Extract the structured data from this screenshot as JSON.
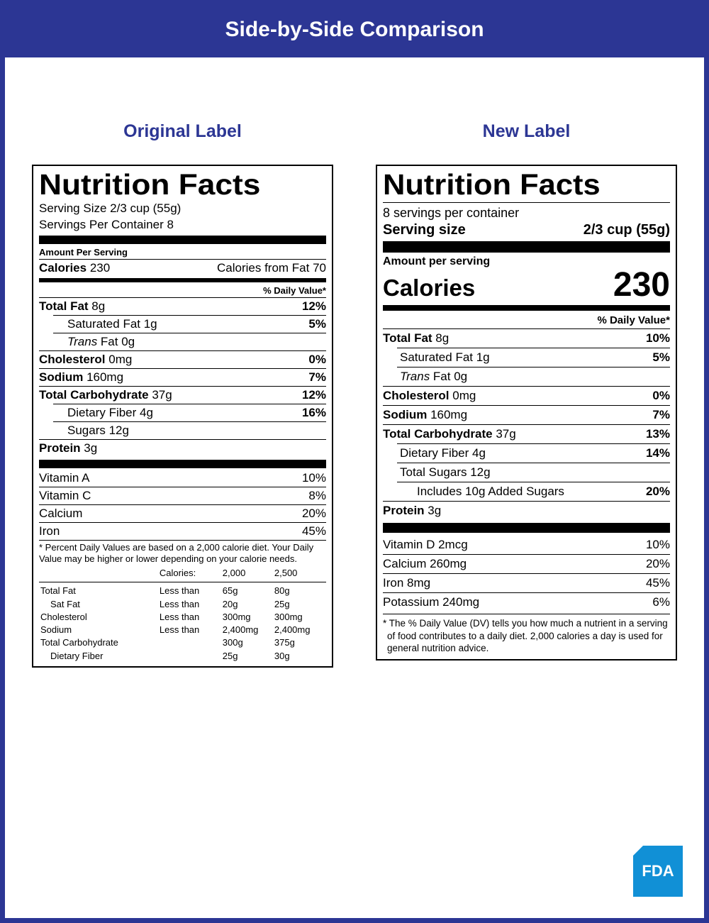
{
  "header": "Side-by-Side Comparison",
  "colors": {
    "brand_blue": "#2c3694",
    "fda_blue": "#1190d6",
    "black": "#000000",
    "white": "#ffffff"
  },
  "fonts": {
    "heading": "Impact / Arial Black",
    "body": "Helvetica / Arial",
    "title_size_pt": 41,
    "body_size_pt": 17,
    "small_size_pt": 13
  },
  "original": {
    "col_title": "Original Label",
    "title": "Nutrition Facts",
    "serving_size": "Serving Size 2/3 cup (55g)",
    "servings_per": "Servings Per Container 8",
    "amount_per_serving": "Amount Per Serving",
    "calories_label": "Calories",
    "calories_value": "230",
    "calories_from_fat": "Calories from Fat 70",
    "dv_header": "% Daily Value*",
    "nutrients": [
      {
        "name": "Total Fat",
        "amount": "8g",
        "dv": "12%",
        "bold": true
      },
      {
        "name": "Saturated Fat",
        "amount": "1g",
        "dv": "5%",
        "indent": 1
      },
      {
        "name_italic_prefix": "Trans",
        "name_rest": " Fat",
        "amount": "0g",
        "indent": 1
      },
      {
        "name": "Cholesterol",
        "amount": "0mg",
        "dv": "0%",
        "bold": true
      },
      {
        "name": "Sodium",
        "amount": "160mg",
        "dv": "7%",
        "bold": true
      },
      {
        "name": "Total Carbohydrate",
        "amount": "37g",
        "dv": "12%",
        "bold": true
      },
      {
        "name": "Dietary Fiber",
        "amount": "4g",
        "dv": "16%",
        "indent": 1
      },
      {
        "name": "Sugars",
        "amount": "12g",
        "indent": 1
      },
      {
        "name": "Protein",
        "amount": "3g",
        "bold": true
      }
    ],
    "vitamins": [
      {
        "name": "Vitamin A",
        "dv": "10%"
      },
      {
        "name": "Vitamin C",
        "dv": "8%"
      },
      {
        "name": "Calcium",
        "dv": "20%"
      },
      {
        "name": "Iron",
        "dv": "45%"
      }
    ],
    "footnote": "* Percent Daily Values are based on a 2,000 calorie diet. Your Daily Value may be higher or lower depending on your calorie needs.",
    "ref_header": {
      "c1": "",
      "c2": "Calories:",
      "c3": "2,000",
      "c4": "2,500"
    },
    "ref_rows": [
      {
        "c1": "Total Fat",
        "c2": "Less than",
        "c3": "65g",
        "c4": "80g"
      },
      {
        "c1": "   Sat Fat",
        "c2": "Less than",
        "c3": "20g",
        "c4": "25g",
        "indent": true
      },
      {
        "c1": "Cholesterol",
        "c2": "Less than",
        "c3": "300mg",
        "c4": "300mg"
      },
      {
        "c1": "Sodium",
        "c2": "Less than",
        "c3": "2,400mg",
        "c4": "2,400mg"
      },
      {
        "c1": "Total Carbohydrate",
        "c2": "",
        "c3": "300g",
        "c4": "375g"
      },
      {
        "c1": "   Dietary Fiber",
        "c2": "",
        "c3": "25g",
        "c4": "30g",
        "indent": true
      }
    ]
  },
  "newlabel": {
    "col_title": "New Label",
    "title": "Nutrition Facts",
    "servings_per": "8 servings per container",
    "serving_size_label": "Serving size",
    "serving_size_value": "2/3 cup (55g)",
    "amount_per_serving": "Amount per serving",
    "calories_label": "Calories",
    "calories_value": "230",
    "dv_header": "% Daily Value*",
    "nutrients": [
      {
        "name": "Total Fat",
        "amount": "8g",
        "dv": "10%",
        "bold": true
      },
      {
        "name": "Saturated Fat",
        "amount": "1g",
        "dv": "5%",
        "indent": 1
      },
      {
        "name_italic_prefix": "Trans",
        "name_rest": " Fat",
        "amount": "0g",
        "indent": 1
      },
      {
        "name": "Cholesterol",
        "amount": "0mg",
        "dv": "0%",
        "bold": true
      },
      {
        "name": "Sodium",
        "amount": "160mg",
        "dv": "7%",
        "bold": true
      },
      {
        "name": "Total Carbohydrate",
        "amount": "37g",
        "dv": "13%",
        "bold": true
      },
      {
        "name": "Dietary Fiber",
        "amount": "4g",
        "dv": "14%",
        "indent": 1
      },
      {
        "name": "Total Sugars",
        "amount": "12g",
        "indent": 1
      },
      {
        "name": "Includes 10g Added Sugars",
        "amount": "",
        "dv": "20%",
        "indent": 2
      },
      {
        "name": "Protein",
        "amount": "3g",
        "bold": true
      }
    ],
    "vitamins": [
      {
        "name": "Vitamin D 2mcg",
        "dv": "10%"
      },
      {
        "name": "Calcium 260mg",
        "dv": "20%"
      },
      {
        "name": "Iron 8mg",
        "dv": "45%"
      },
      {
        "name": "Potassium 240mg",
        "dv": "6%"
      }
    ],
    "footnote": "* The % Daily Value (DV) tells you how much a nutrient in a serving of food contributes to a daily diet. 2,000 calories a day is used for general nutrition advice."
  },
  "fda": "FDA"
}
